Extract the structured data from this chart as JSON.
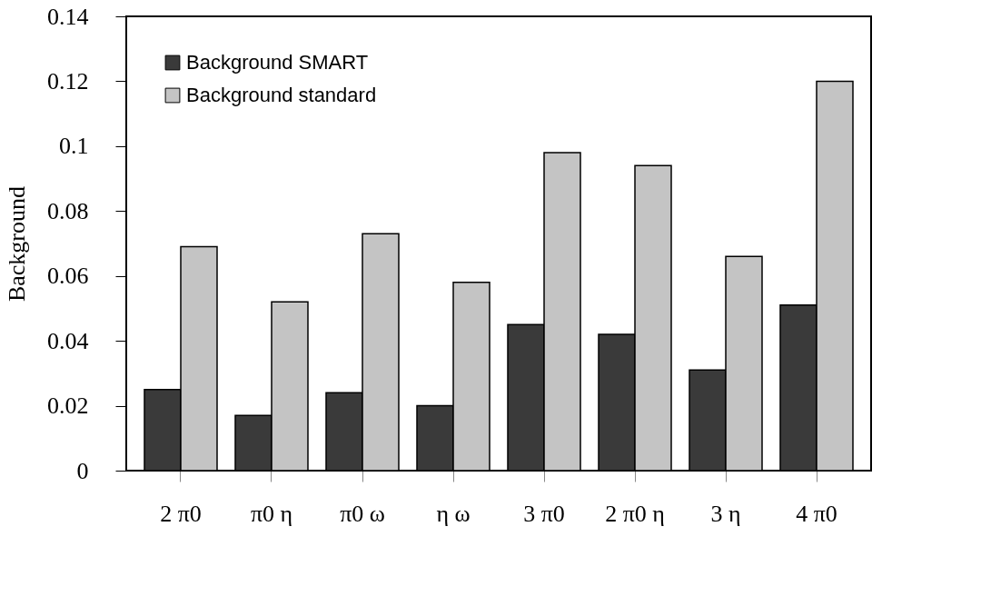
{
  "chart_data": {
    "type": "bar",
    "ylabel": "Background",
    "categories": [
      "2 π0",
      "π0 η",
      "π0 ω",
      "η ω",
      "3 π0",
      "2 π0 η",
      "3 η",
      "4 π0"
    ],
    "series": [
      {
        "name": "Background SMART",
        "color": "#3a3a3a",
        "values": [
          0.025,
          0.017,
          0.024,
          0.02,
          0.045,
          0.042,
          0.031,
          0.051
        ]
      },
      {
        "name": "Background standard",
        "color": "#c4c4c4",
        "values": [
          0.069,
          0.052,
          0.073,
          0.058,
          0.098,
          0.094,
          0.066,
          0.12
        ]
      }
    ],
    "ylim": [
      0,
      0.14
    ],
    "yticks": [
      0,
      0.02,
      0.04,
      0.06,
      0.08,
      0.1,
      0.12,
      0.14
    ],
    "grid": false,
    "legend": "top left"
  }
}
